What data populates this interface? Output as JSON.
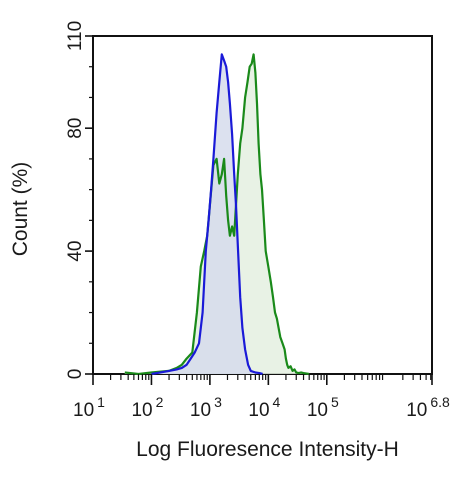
{
  "chart_data": {
    "type": "area",
    "xlabel": "Log Fluoresence Intensity-H",
    "ylabel": "Count  (%)",
    "x_scale": "log",
    "xlim": [
      10,
      6309573
    ],
    "ylim": [
      0,
      110
    ],
    "x_ticks": [
      {
        "value": 10,
        "base": "10",
        "exp": "1"
      },
      {
        "value": 100,
        "base": "10",
        "exp": "2"
      },
      {
        "value": 1000,
        "base": "10",
        "exp": "3"
      },
      {
        "value": 10000,
        "base": "10",
        "exp": "4"
      },
      {
        "value": 100000,
        "base": "10",
        "exp": "5"
      },
      {
        "value": 6309573,
        "base": "10",
        "exp": "6.8"
      }
    ],
    "y_ticks": [
      {
        "value": 0,
        "label": "0"
      },
      {
        "value": 40,
        "label": "40"
      },
      {
        "value": 80,
        "label": "80"
      },
      {
        "value": 110,
        "label": "110"
      }
    ],
    "grid": false,
    "legend": "none",
    "series": [
      {
        "color": "#1a8a1a",
        "fill": "#e4f0e0",
        "x": [
          35,
          60,
          100,
          200,
          270,
          330,
          400,
          500,
          600,
          700,
          800,
          900,
          1000,
          1150,
          1300,
          1450,
          1600,
          1750,
          1900,
          2050,
          2200,
          2400,
          2600,
          2800,
          3000,
          3300,
          3600,
          4000,
          4400,
          4800,
          5200,
          5600,
          6000,
          6400,
          6800,
          7300,
          7800,
          8400,
          9000,
          10000,
          11000,
          12000,
          13000,
          14000,
          15000,
          16000,
          17500,
          19000,
          20000,
          21000,
          22000,
          24000,
          26000,
          28000,
          30000,
          33000,
          36000,
          40000,
          50000
        ],
        "y": [
          0.5,
          0,
          0.5,
          1,
          2,
          3,
          5,
          7,
          20,
          35,
          40,
          45,
          55,
          68,
          70,
          62,
          65,
          70,
          58,
          50,
          45,
          48,
          45,
          55,
          65,
          75,
          80,
          90,
          95,
          100,
          101,
          104,
          98,
          88,
          75,
          65,
          60,
          50,
          40,
          35,
          30,
          25,
          20,
          18,
          15,
          12,
          10,
          8,
          5,
          3,
          2,
          2.5,
          1,
          1.5,
          0.5,
          0.3,
          0.5,
          0.3,
          0
        ]
      },
      {
        "color": "#1a1ad8",
        "fill": "#d6dcec",
        "x": [
          100,
          200,
          270,
          330,
          400,
          470,
          550,
          650,
          750,
          850,
          950,
          1050,
          1150,
          1300,
          1450,
          1600,
          1750,
          1900,
          2050,
          2200,
          2400,
          2600,
          2800,
          3000,
          3300,
          3600,
          4000,
          4500,
          5000,
          6000,
          7000,
          8000
        ],
        "y": [
          0,
          1,
          1.5,
          2,
          3,
          5,
          7,
          10,
          20,
          40,
          50,
          60,
          70,
          85,
          95,
          104,
          102,
          100,
          95,
          88,
          78,
          65,
          55,
          42,
          25,
          15,
          8,
          3,
          1,
          0.5,
          0.3,
          0
        ]
      }
    ]
  }
}
